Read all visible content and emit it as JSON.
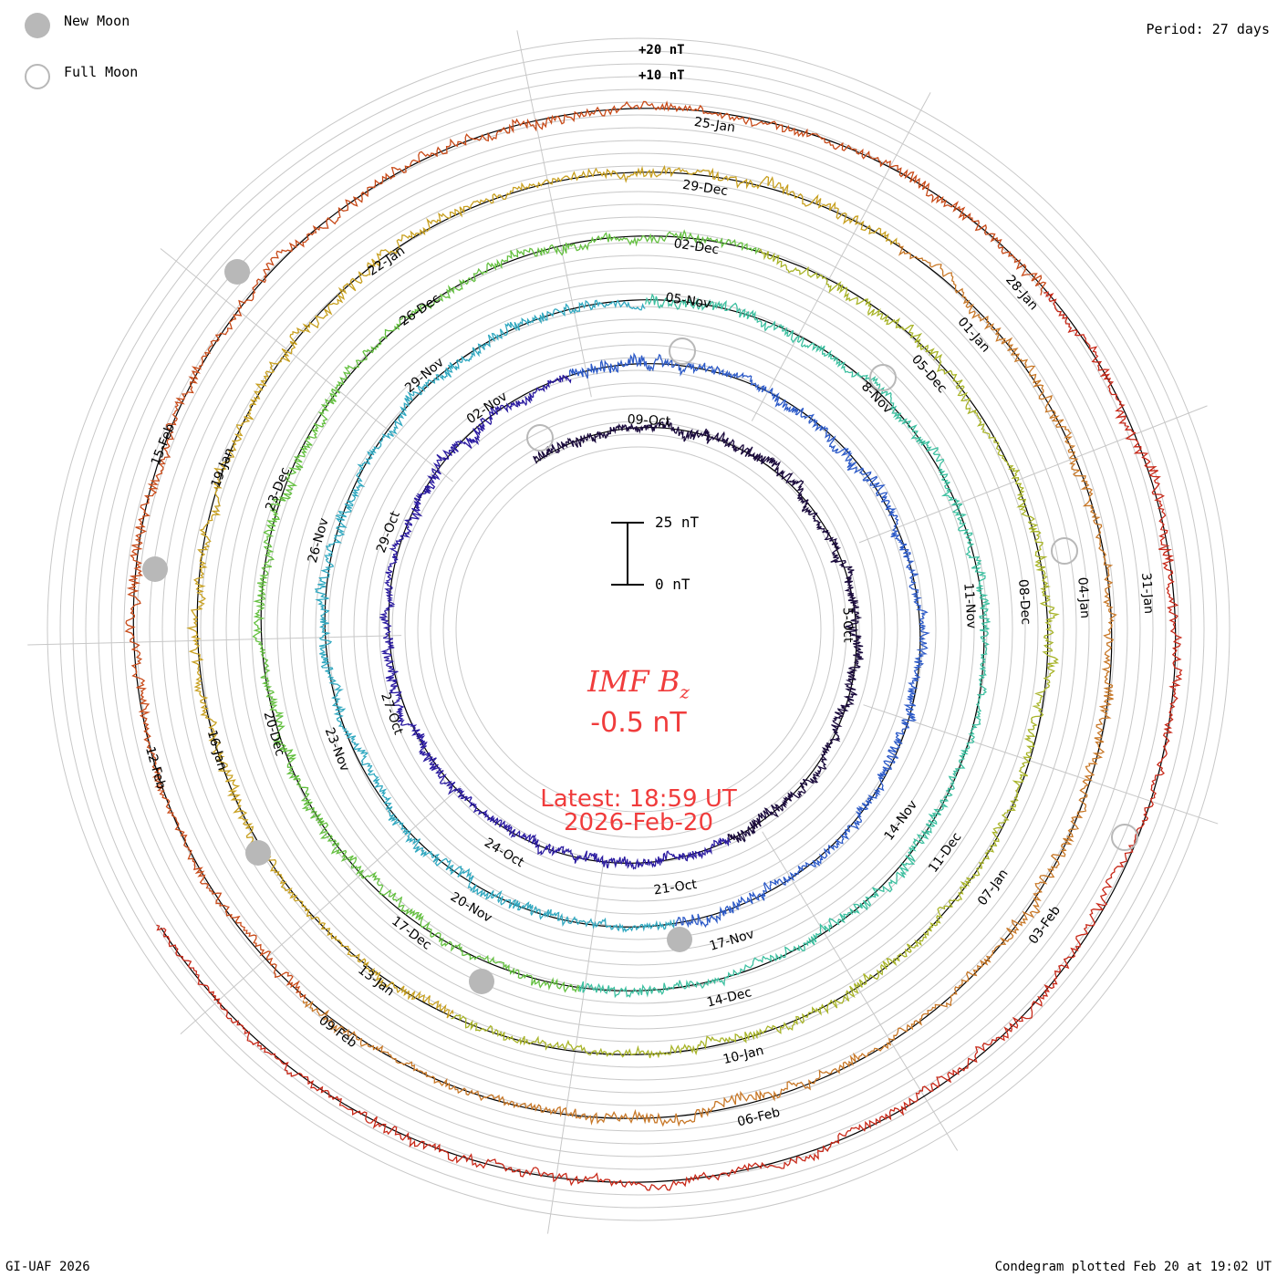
{
  "legend": {
    "new_moon_label": "New Moon",
    "full_moon_label": "Full Moon"
  },
  "header": {
    "period_label": "Period: 27 days"
  },
  "footer": {
    "credit": "GI-UAF 2026",
    "plotted": "Condegram plotted Feb 20 at 19:02 UT"
  },
  "scale": {
    "ring_label_20": "+20 nT",
    "ring_label_10": "+10 nT",
    "bar_top": "25 nT",
    "bar_bottom": "0 nT"
  },
  "center": {
    "title_main": "IMF B",
    "title_sub": "z",
    "value": "-0.5 nT",
    "latest_line1": "Latest: 18:59 UT",
    "latest_line2": "2026-Feb-20"
  },
  "colors": {
    "turn_colors": [
      "#1a0a3c",
      "#2a1aa0",
      "#2c5ac8",
      "#30a8c0",
      "#3cc0a0",
      "#64c040",
      "#a8b428",
      "#c8a020",
      "#c87828",
      "#c84a18",
      "#c82818"
    ],
    "center_text": "#f03c3c",
    "moon_fill": "#b8b8b8",
    "grid": "#c8c8c8"
  },
  "chart_data": {
    "type": "line",
    "title": "IMF Bz",
    "layout": "spiral condegram, one turn per 27-day period",
    "period_days": 27,
    "units": "nT",
    "latest_value": -0.5,
    "latest_time": "2026-Feb-20 18:59 UT",
    "series": [
      {
        "turn": 1,
        "date_labels": [
          "09-Oct",
          "5-Oct"
        ]
      },
      {
        "turn": 2,
        "date_labels": [
          "02-Nov",
          "29-Oct",
          "27-Oct",
          "24-Oct",
          "21-Oct"
        ]
      },
      {
        "turn": 3,
        "date_labels": [
          "05-Nov",
          "8-Nov",
          "11-Nov",
          "14-Nov",
          "17-Nov",
          "20-Nov",
          "23-Nov",
          "26-Nov",
          "29-Nov"
        ]
      },
      {
        "turn": 4,
        "date_labels": [
          "02-Dec",
          "05-Dec",
          "08-Dec",
          "11-Dec",
          "14-Dec",
          "17-Dec",
          "20-Dec",
          "23-Dec",
          "26-Dec"
        ]
      },
      {
        "turn": 5,
        "date_labels": [
          "29-Dec",
          "01-Jan",
          "04-Jan",
          "07-Jan",
          "10-Jan",
          "13-Jan",
          "16-Jan",
          "19-Jan",
          "22-Jan"
        ]
      },
      {
        "turn": 6,
        "date_labels": [
          "25-Jan",
          "28-Jan",
          "31-Jan",
          "03-Feb",
          "06-Feb",
          "09-Feb",
          "12-Feb",
          "15-Feb"
        ]
      }
    ],
    "new_moon_dates": [
      "21-Oct",
      "20-Nov",
      "20-Dec",
      "19-Jan",
      "17-Feb"
    ],
    "full_moon_dates": [
      "06-Oct",
      "05-Nov",
      "04-Dec",
      "03-Jan",
      "01-Feb"
    ],
    "grid": true
  }
}
